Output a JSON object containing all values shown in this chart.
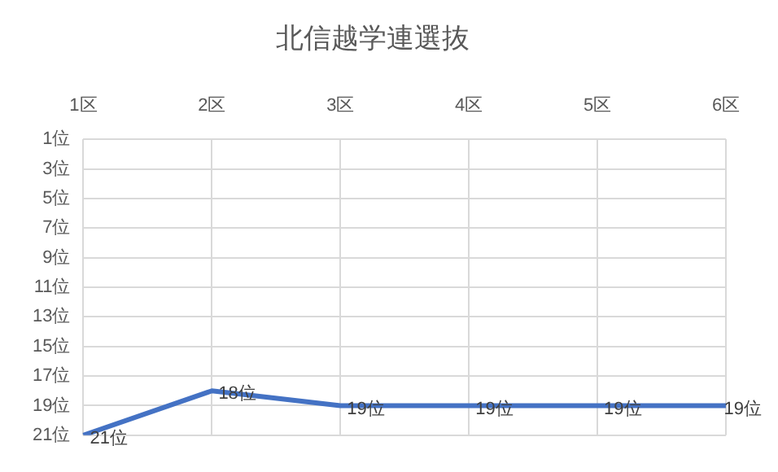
{
  "chart_data": {
    "type": "line",
    "title": "北信越学連選抜",
    "categories": [
      "1区",
      "2区",
      "3区",
      "4区",
      "5区",
      "6区"
    ],
    "series": [
      {
        "color": "#4472c4",
        "values": [
          21,
          18,
          19,
          19,
          19,
          19
        ],
        "value_labels": [
          "21位",
          "18位",
          "19位",
          "19位",
          "19位",
          "19位"
        ]
      }
    ],
    "ylim": [
      21,
      1
    ],
    "yticks": [
      {
        "value": 1,
        "label": "1位"
      },
      {
        "value": 3,
        "label": "3位"
      },
      {
        "value": 5,
        "label": "5位"
      },
      {
        "value": 7,
        "label": "7位"
      },
      {
        "value": 9,
        "label": "9位"
      },
      {
        "value": 11,
        "label": "11位"
      },
      {
        "value": 13,
        "label": "13位"
      },
      {
        "value": 15,
        "label": "15位"
      },
      {
        "value": 17,
        "label": "17位"
      },
      {
        "value": 19,
        "label": "19位"
      },
      {
        "value": 21,
        "label": "21位"
      }
    ],
    "grid": true,
    "legend": false,
    "marker": "none",
    "line_style": "solid"
  }
}
